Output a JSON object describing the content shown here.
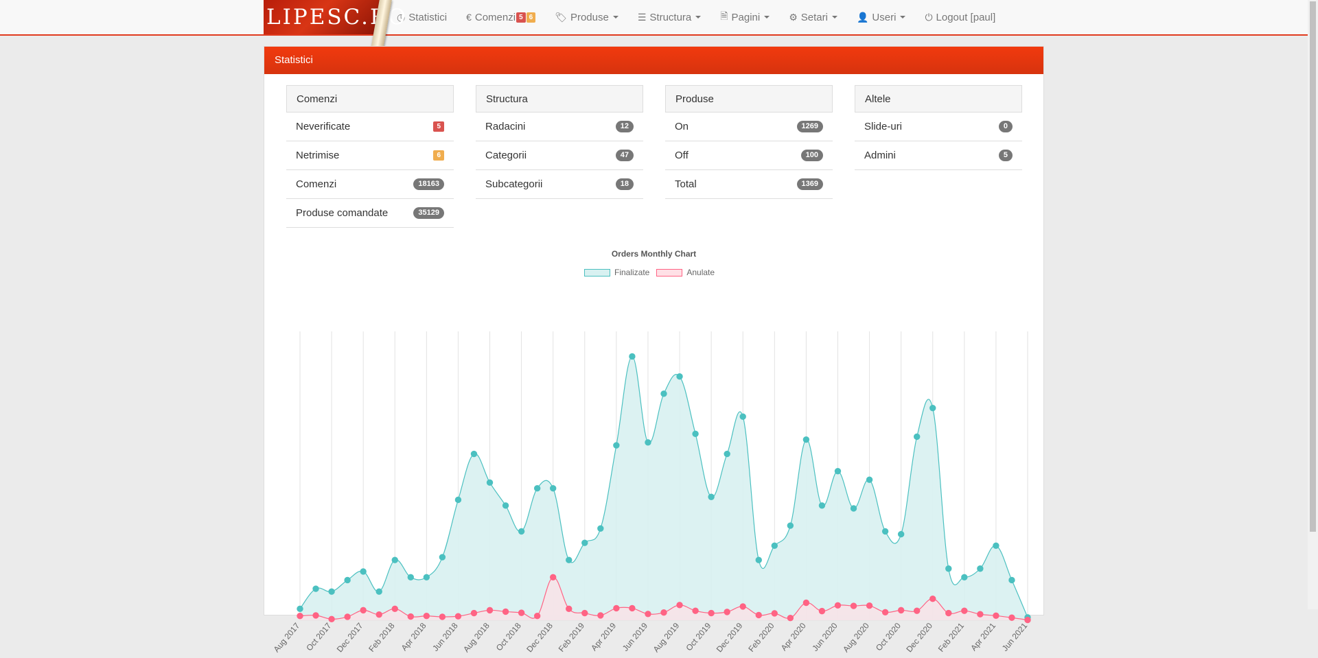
{
  "nav": {
    "logo": "LIPESC.RO",
    "items": [
      {
        "label": "Statistici",
        "icon": "dashboard-icon",
        "glyph": "◷",
        "caret": false
      },
      {
        "label": "Comenzi",
        "icon": "euro-icon",
        "glyph": "€",
        "caret": false,
        "badges": [
          "5",
          "6"
        ]
      },
      {
        "label": "Produse",
        "icon": "tags-icon",
        "glyph": "🏷",
        "caret": true
      },
      {
        "label": "Structura",
        "icon": "list-icon",
        "glyph": "☰",
        "caret": true
      },
      {
        "label": "Pagini",
        "icon": "file-icon",
        "glyph": "🗎",
        "caret": true
      },
      {
        "label": "Setari",
        "icon": "gear-icon",
        "glyph": "⚙",
        "caret": true
      },
      {
        "label": "Useri",
        "icon": "user-icon",
        "glyph": "👤",
        "caret": true
      },
      {
        "label": "Logout [paul]",
        "icon": "power-icon",
        "glyph": "⏻",
        "caret": false
      }
    ]
  },
  "panel": {
    "title": "Statistici",
    "groups": [
      {
        "title": "Comenzi",
        "rows": [
          {
            "label": "Neverificate",
            "value": "5",
            "style": "sq-red"
          },
          {
            "label": "Netrimise",
            "value": "6",
            "style": "sq-orange"
          },
          {
            "label": "Comenzi",
            "value": "18163",
            "style": "pill"
          },
          {
            "label": "Produse comandate",
            "value": "35129",
            "style": "pill"
          }
        ]
      },
      {
        "title": "Structura",
        "rows": [
          {
            "label": "Radacini",
            "value": "12",
            "style": "pill"
          },
          {
            "label": "Categorii",
            "value": "47",
            "style": "pill"
          },
          {
            "label": "Subcategorii",
            "value": "18",
            "style": "pill"
          }
        ]
      },
      {
        "title": "Produse",
        "rows": [
          {
            "label": "On",
            "value": "1269",
            "style": "pill"
          },
          {
            "label": "Off",
            "value": "100",
            "style": "pill"
          },
          {
            "label": "Total",
            "value": "1369",
            "style": "pill"
          }
        ]
      },
      {
        "title": "Altele",
        "rows": [
          {
            "label": "Slide-uri",
            "value": "0",
            "style": "pill"
          },
          {
            "label": "Admini",
            "value": "5",
            "style": "pill"
          }
        ]
      }
    ]
  },
  "colors": {
    "brand": "#e03a1e",
    "finalizate_line": "#4bc0c0",
    "finalizate_fill": "#d8f1f1",
    "anulate_line": "#ff6384",
    "anulate_fill": "#ffe0e6"
  },
  "chart_data": {
    "type": "line",
    "title": "Orders Monthly Chart",
    "legend_position": "top",
    "grid": true,
    "ylim": [
      0,
      100
    ],
    "y_axis_labels_visible": false,
    "categories": [
      "Aug 2017",
      "Sep 2017",
      "Oct 2017",
      "Nov 2017",
      "Dec 2017",
      "Jan 2018",
      "Feb 2018",
      "Mar 2018",
      "Apr 2018",
      "May 2018",
      "Jun 2018",
      "Jul 2018",
      "Aug 2018",
      "Sep 2018",
      "Oct 2018",
      "Nov 2018",
      "Dec 2018",
      "Jan 2019",
      "Feb 2019",
      "Mar 2019",
      "Apr 2019",
      "May 2019",
      "Jun 2019",
      "Jul 2019",
      "Aug 2019",
      "Sep 2019",
      "Oct 2019",
      "Nov 2019",
      "Dec 2019",
      "Jan 2020",
      "Feb 2020",
      "Mar 2020",
      "Apr 2020",
      "May 2020",
      "Jun 2020",
      "Jul 2020",
      "Aug 2020",
      "Sep 2020",
      "Oct 2020",
      "Nov 2020",
      "Dec 2020",
      "Jan 2021",
      "Feb 2021",
      "Mar 2021",
      "Apr 2021",
      "May 2021",
      "Jun 2021"
    ],
    "x_tick_labels": [
      "Aug 2017",
      "Oct 2017",
      "Dec 2017",
      "Feb 2018",
      "Apr 2018",
      "Jun 2018",
      "Aug 2018",
      "Oct 2018",
      "Dec 2018",
      "Feb 2019",
      "Apr 2019",
      "Jun 2019",
      "Aug 2019",
      "Oct 2019",
      "Dec 2019",
      "Feb 2020",
      "Apr 2020",
      "Jun 2020",
      "Aug 2020",
      "Oct 2020",
      "Dec 2020",
      "Feb 2021",
      "Apr 2021",
      "Jun 2021"
    ],
    "series": [
      {
        "name": "Finalizate",
        "values": [
          4,
          11,
          10,
          14,
          17,
          10,
          21,
          15,
          15,
          22,
          42,
          58,
          48,
          40,
          31,
          46,
          46,
          21,
          27,
          32,
          61,
          92,
          62,
          79,
          85,
          65,
          43,
          58,
          71,
          21,
          26,
          33,
          63,
          40,
          52,
          39,
          49,
          31,
          30,
          64,
          74,
          18,
          15,
          18,
          26,
          14,
          1
        ]
      },
      {
        "name": "Anulate",
        "values": [
          1.5,
          1.7,
          0.4,
          1.2,
          3.5,
          2,
          4,
          1.3,
          1.5,
          1.2,
          1.4,
          2.5,
          3.5,
          3,
          2.6,
          1.5,
          15,
          4,
          2.5,
          1.7,
          4.2,
          4.2,
          2.2,
          2.7,
          5.3,
          3.3,
          2.5,
          2.9,
          4.8,
          1.8,
          2.4,
          0.8,
          6.1,
          3.2,
          5.2,
          5,
          5.1,
          2.8,
          3.5,
          3.3,
          7.5,
          2.5,
          3.3,
          2.1,
          1.6,
          0.9,
          0.1
        ]
      }
    ]
  }
}
